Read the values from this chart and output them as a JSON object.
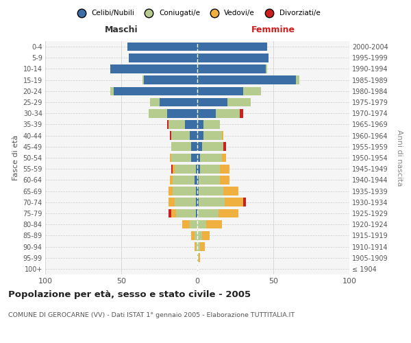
{
  "age_groups": [
    "100+",
    "95-99",
    "90-94",
    "85-89",
    "80-84",
    "75-79",
    "70-74",
    "65-69",
    "60-64",
    "55-59",
    "50-54",
    "45-49",
    "40-44",
    "35-39",
    "30-34",
    "25-29",
    "20-24",
    "15-19",
    "10-14",
    "5-9",
    "0-4"
  ],
  "birth_years": [
    "≤ 1904",
    "1905-1909",
    "1910-1914",
    "1915-1919",
    "1920-1924",
    "1925-1929",
    "1930-1934",
    "1935-1939",
    "1940-1944",
    "1945-1949",
    "1950-1954",
    "1955-1959",
    "1960-1964",
    "1965-1969",
    "1970-1974",
    "1975-1979",
    "1980-1984",
    "1985-1989",
    "1990-1994",
    "1995-1999",
    "2000-2004"
  ],
  "maschi": {
    "celibi": [
      0,
      0,
      0,
      0,
      0,
      1,
      1,
      1,
      2,
      1,
      4,
      4,
      5,
      8,
      20,
      25,
      55,
      35,
      57,
      45,
      46
    ],
    "coniugati": [
      0,
      0,
      1,
      2,
      5,
      13,
      14,
      15,
      14,
      14,
      13,
      13,
      12,
      11,
      12,
      6,
      2,
      1,
      0,
      0,
      0
    ],
    "vedovi": [
      0,
      0,
      1,
      2,
      5,
      3,
      4,
      3,
      2,
      1,
      1,
      0,
      0,
      0,
      0,
      0,
      0,
      0,
      0,
      0,
      0
    ],
    "divorziati": [
      0,
      0,
      0,
      0,
      0,
      2,
      0,
      0,
      0,
      1,
      0,
      0,
      1,
      1,
      0,
      0,
      0,
      0,
      0,
      0,
      0
    ]
  },
  "femmine": {
    "nubili": [
      0,
      0,
      0,
      0,
      0,
      0,
      1,
      1,
      1,
      2,
      2,
      3,
      4,
      4,
      12,
      20,
      30,
      65,
      45,
      47,
      46
    ],
    "coniugate": [
      0,
      1,
      2,
      3,
      6,
      14,
      17,
      16,
      14,
      13,
      14,
      14,
      12,
      11,
      16,
      15,
      12,
      2,
      1,
      0,
      0
    ],
    "vedove": [
      0,
      1,
      3,
      5,
      10,
      13,
      12,
      10,
      6,
      6,
      3,
      0,
      1,
      0,
      0,
      0,
      0,
      0,
      0,
      0,
      0
    ],
    "divorziate": [
      0,
      0,
      0,
      0,
      0,
      0,
      2,
      0,
      0,
      0,
      0,
      2,
      0,
      0,
      2,
      0,
      0,
      0,
      0,
      0,
      0
    ]
  },
  "colors": {
    "celibi": "#3a6ea5",
    "coniugati": "#b5cc8e",
    "vedovi": "#f0b040",
    "divorziati": "#cc2020"
  },
  "xlim": 100,
  "title": "Popolazione per età, sesso e stato civile - 2005",
  "subtitle": "COMUNE DI GEROCARNE (VV) - Dati ISTAT 1° gennaio 2005 - Elaborazione TUTTITALIA.IT",
  "ylabel_left": "Fasce di età",
  "ylabel_right": "Anni di nascita",
  "legend_labels": [
    "Celibi/Nubili",
    "Coniugati/e",
    "Vedovi/e",
    "Divorziati/e"
  ],
  "bg_color": "#f5f5f5"
}
